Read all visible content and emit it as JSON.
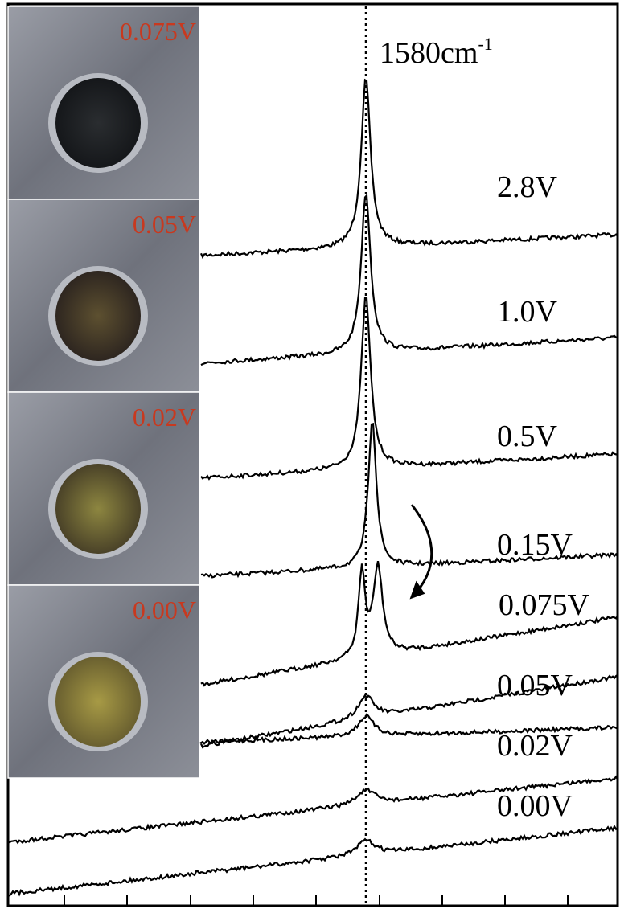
{
  "peak_label": {
    "text": "1580cm",
    "superscript": "-1"
  },
  "spectrum_labels": [
    "2.8V",
    "1.0V",
    "0.5V",
    "0.15V",
    "0.075V",
    "0.05V",
    "0.02V",
    "0.00V"
  ],
  "photo_labels": [
    "0.075V",
    "0.05V",
    "0.02V",
    "0.00V"
  ]
}
